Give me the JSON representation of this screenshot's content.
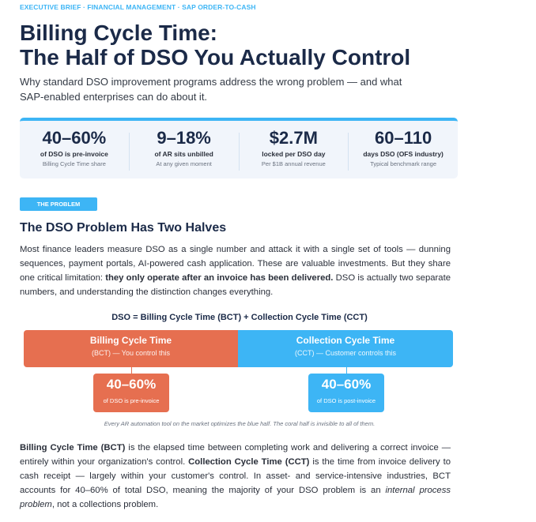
{
  "kicker": "EXECUTIVE BRIEF · FINANCIAL MANAGEMENT · SAP ORDER-TO-CASH",
  "title_line1": "Billing Cycle Time:",
  "title_line2": "The Half of DSO You Actually Control",
  "subtitle": "Why standard DSO improvement programs address the wrong problem — and what SAP-enabled enterprises can do about it.",
  "stats": [
    {
      "value": "40–60%",
      "label": "of DSO is pre-invoice",
      "sub": "Billing Cycle Time share"
    },
    {
      "value": "9–18%",
      "label": "of AR sits unbilled",
      "sub": "At any given moment"
    },
    {
      "value": "$2.7M",
      "label": "locked per DSO day",
      "sub": "Per $1B annual revenue"
    },
    {
      "value": "60–110",
      "label": "days DSO (OFS industry)",
      "sub": "Typical benchmark range"
    }
  ],
  "badge": "THE PROBLEM",
  "heading": "The DSO Problem Has Two Halves",
  "para1": {
    "a": "Most finance leaders measure DSO as a single number and attack it with a single set of tools — dunning sequences, payment portals, AI-powered cash application. These are valuable investments. But they share one critical limitation: ",
    "b": "they only operate after an invoice has been delivered.",
    "c": " DSO is actually two separate numbers, and understanding the distinction changes everything."
  },
  "equation": "DSO  =  Billing Cycle Time (BCT)  +  Collection Cycle Time (CCT)",
  "bct": {
    "title": "Billing Cycle Time",
    "desc": "(BCT) — You control this",
    "value": "40–60%",
    "note": "of DSO is pre-invoice"
  },
  "cct": {
    "title": "Collection Cycle Time",
    "desc": "(CCT) — Customer controls this",
    "value": "40–60%",
    "note": "of DSO is post-invoice"
  },
  "caption": "Every AR automation tool on the market optimizes the blue half.  The coral half is invisible to all of them.",
  "para2": {
    "a": "Billing Cycle Time (BCT)",
    "b": " is the elapsed time between completing work and delivering a correct invoice — entirely within your organization's control. ",
    "c": "Collection Cycle Time (CCT)",
    "d": " is the time from invoice delivery to cash receipt — largely within your customer's control. In asset- and service-intensive industries, BCT accounts for 40–60% of total DSO, meaning the majority of your DSO problem is an ",
    "e": "internal process problem",
    "f": ", not a collections problem."
  },
  "colors": {
    "navy": "#1b2a48",
    "blue": "#3db5f5",
    "coral": "#e66f50"
  }
}
